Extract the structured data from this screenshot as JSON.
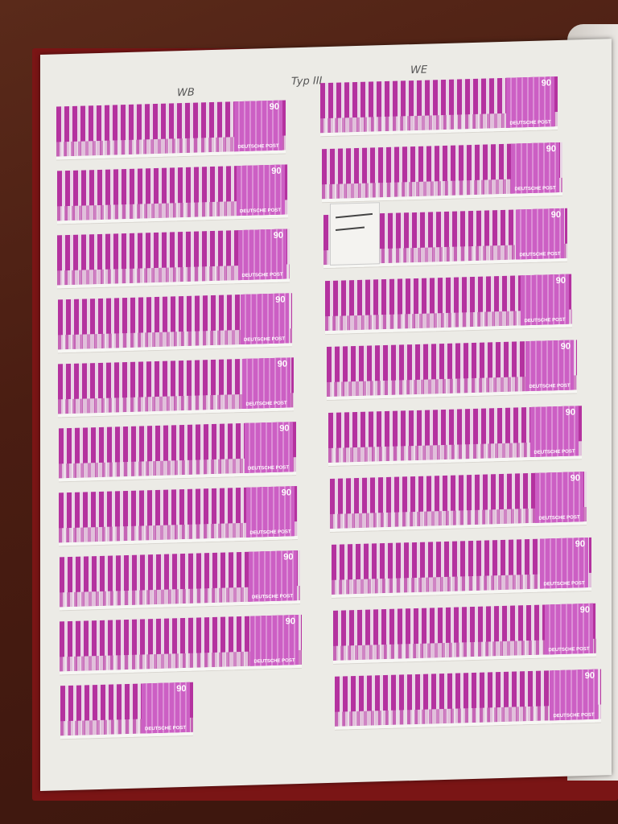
{
  "album": {
    "labels": {
      "left_column": "WB",
      "middle": "Typ III",
      "right_column": "WE"
    },
    "stamp": {
      "denomination": "90",
      "inscription": "DEUTSCHE POST",
      "color": "#c04bb5"
    },
    "left_rows": 10,
    "right_rows": 10,
    "colors": {
      "background": "#4a1d12",
      "page": "#ecebe6",
      "cover": "#7a1515"
    }
  }
}
